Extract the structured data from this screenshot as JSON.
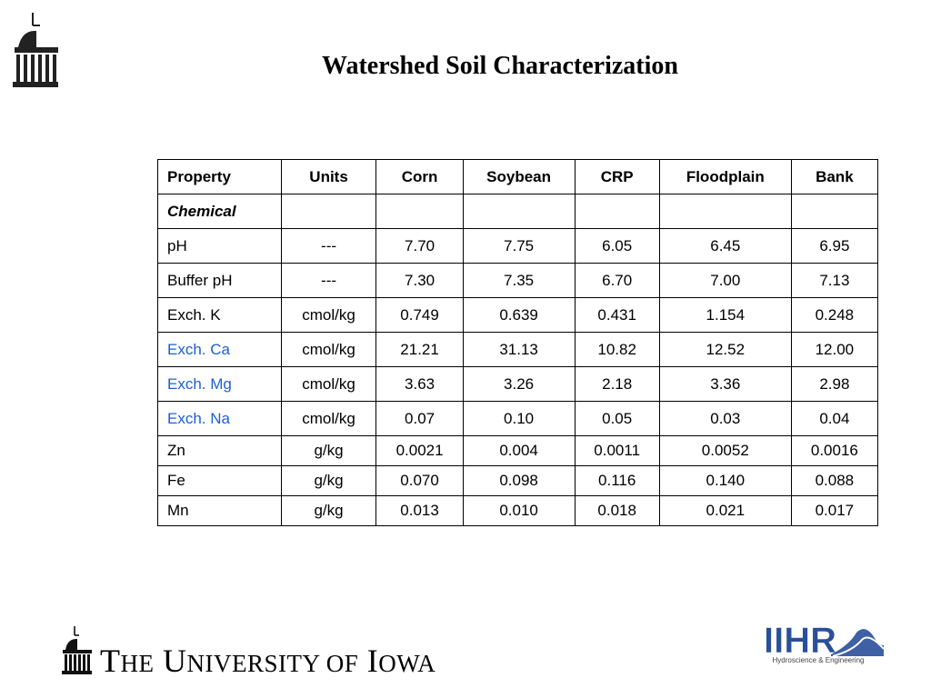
{
  "title": "Watershed Soil Characterization",
  "table": {
    "headers": [
      "Property",
      "Units",
      "Corn",
      "Soybean",
      "CRP",
      "Floodplain",
      "Bank"
    ],
    "section_label": "Chemical",
    "rows": [
      {
        "property": "pH",
        "units": "---",
        "values": [
          "7.70",
          "7.75",
          "6.05",
          "6.45",
          "6.95"
        ],
        "highlight": false
      },
      {
        "property": "Buffer pH",
        "units": "---",
        "values": [
          "7.30",
          "7.35",
          "6.70",
          "7.00",
          "7.13"
        ],
        "highlight": false
      },
      {
        "property": "Exch. K",
        "units": "cmol/kg",
        "values": [
          "0.749",
          "0.639",
          "0.431",
          "1.154",
          "0.248"
        ],
        "highlight": false
      },
      {
        "property": "Exch. Ca",
        "units": "cmol/kg",
        "values": [
          "21.21",
          "31.13",
          "10.82",
          "12.52",
          "12.00"
        ],
        "highlight": true
      },
      {
        "property": "Exch. Mg",
        "units": "cmol/kg",
        "values": [
          "3.63",
          "3.26",
          "2.18",
          "3.36",
          "2.98"
        ],
        "highlight": true
      },
      {
        "property": "Exch. Na",
        "units": "cmol/kg",
        "values": [
          "0.07",
          "0.10",
          "0.05",
          "0.03",
          "0.04"
        ],
        "highlight": true
      },
      {
        "property": "Zn",
        "units": "g/kg",
        "values": [
          "0.0021",
          "0.004",
          "0.0011",
          "0.0052",
          "0.0016"
        ],
        "highlight": false
      },
      {
        "property": "Fe",
        "units": "g/kg",
        "values": [
          "0.070",
          "0.098",
          "0.116",
          "0.140",
          "0.088"
        ],
        "highlight": false
      },
      {
        "property": "Mn",
        "units": "g/kg",
        "values": [
          "0.013",
          "0.010",
          "0.018",
          "0.021",
          "0.017"
        ],
        "highlight": false
      }
    ]
  },
  "footer": {
    "university_the": "T",
    "university_the_rest": "HE",
    "university_u": "U",
    "university_u_rest": "NIVERSITY OF",
    "university_i": "I",
    "university_i_rest": "OWA",
    "ihr_logo_text": "IIHR",
    "ihr_subtitle": "Hydroscience & Engineering"
  },
  "colors": {
    "highlight": "#1d5fd6",
    "ihr_blue": "#2a4f9a"
  },
  "icons": [
    "old-capitol-icon",
    "old-capitol-footer-icon",
    "iihr-logo"
  ]
}
